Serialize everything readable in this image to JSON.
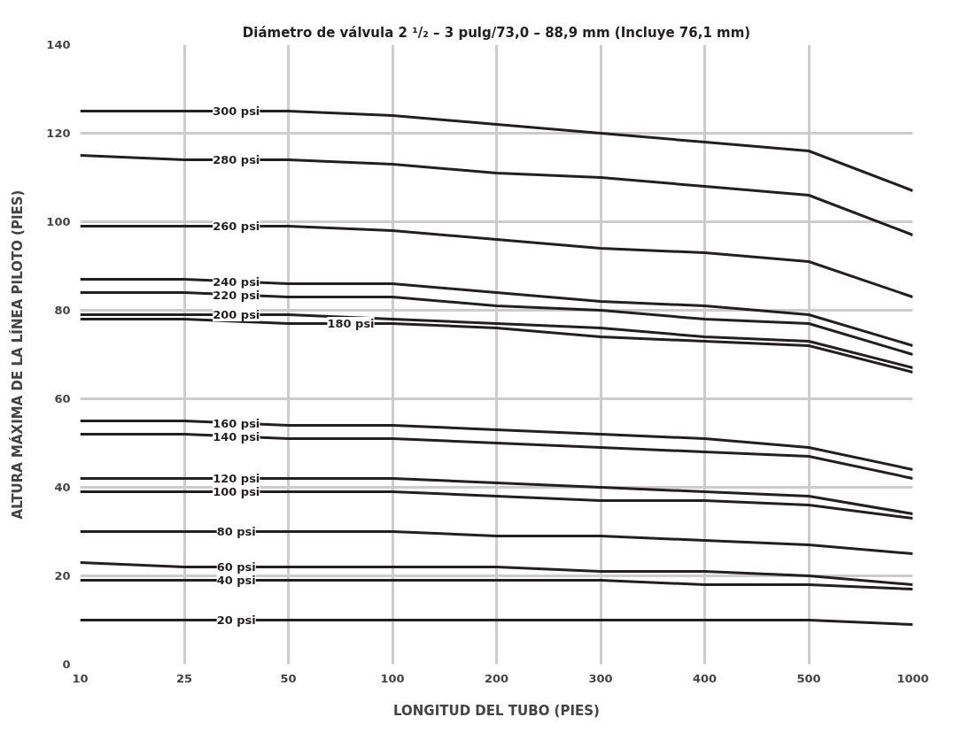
{
  "chart_data": {
    "type": "line",
    "title": "Diámetro de válvula 2 ¹/₂ – 3 pulg/73,0 – 88,9 mm (Incluye 76,1 mm)",
    "xlabel": "LONGITUD DEL TUBO (PIES)",
    "ylabel": "ALTURA MÁXIMA DE LA LÍNEA PILOTO (PIES)",
    "categories": [
      "10",
      "25",
      "50",
      "100",
      "200",
      "300",
      "400",
      "500",
      "1000"
    ],
    "ylim": [
      0,
      140
    ],
    "yticks": [
      0,
      20,
      40,
      60,
      80,
      100,
      120,
      140
    ],
    "grid": true,
    "marker": "none",
    "line_style": "solid",
    "series": [
      {
        "name": "300 psi",
        "color": "#231f20",
        "values": [
          125,
          125,
          125,
          124,
          122,
          120,
          118,
          116,
          107
        ]
      },
      {
        "name": "280 psi",
        "color": "#231f20",
        "values": [
          115,
          114,
          114,
          113,
          111,
          110,
          108,
          106,
          97
        ]
      },
      {
        "name": "260 psi",
        "color": "#231f20",
        "values": [
          99,
          99,
          99,
          98,
          96,
          94,
          93,
          91,
          83
        ]
      },
      {
        "name": "240 psi",
        "color": "#231f20",
        "values": [
          87,
          87,
          86,
          86,
          84,
          82,
          81,
          79,
          72
        ]
      },
      {
        "name": "220 psi",
        "color": "#231f20",
        "values": [
          84,
          84,
          83,
          83,
          81,
          80,
          78,
          77,
          70
        ]
      },
      {
        "name": "200 psi",
        "color": "#231f20",
        "values": [
          79,
          79,
          79,
          78,
          77,
          76,
          74,
          73,
          67
        ]
      },
      {
        "name": "180 psi",
        "color": "#231f20",
        "values": [
          78,
          78,
          77,
          77,
          76,
          74,
          73,
          72,
          66
        ]
      },
      {
        "name": "160 psi",
        "color": "#231f20",
        "values": [
          55,
          55,
          54,
          54,
          53,
          52,
          51,
          49,
          44
        ]
      },
      {
        "name": "140 psi",
        "color": "#231f20",
        "values": [
          52,
          52,
          51,
          51,
          50,
          49,
          48,
          47,
          42
        ]
      },
      {
        "name": "120 psi",
        "color": "#231f20",
        "values": [
          42,
          42,
          42,
          42,
          41,
          40,
          39,
          38,
          34
        ]
      },
      {
        "name": "100 psi",
        "color": "#231f20",
        "values": [
          39,
          39,
          39,
          39,
          38,
          37,
          37,
          36,
          33
        ]
      },
      {
        "name": "80 psi",
        "color": "#231f20",
        "values": [
          30,
          30,
          30,
          30,
          29,
          29,
          28,
          27,
          25
        ]
      },
      {
        "name": "60 psi",
        "color": "#231f20",
        "values": [
          23,
          22,
          22,
          22,
          22,
          21,
          21,
          20,
          18
        ]
      },
      {
        "name": "40 psi",
        "color": "#231f20",
        "values": [
          19,
          19,
          19,
          19,
          19,
          19,
          18,
          18,
          17
        ]
      },
      {
        "name": "20 psi",
        "color": "#231f20",
        "values": [
          10,
          10,
          10,
          10,
          10,
          10,
          10,
          10,
          9
        ]
      }
    ]
  }
}
